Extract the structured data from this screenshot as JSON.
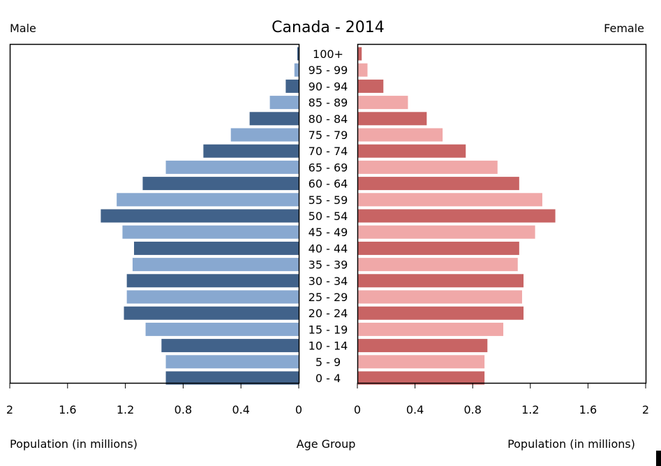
{
  "chart_data": {
    "type": "bar",
    "subtype": "population-pyramid",
    "title": "Canada - 2014",
    "left_label": "Male",
    "right_label": "Female",
    "xlabel_left": "Population (in millions)",
    "xlabel_center": "Age Group",
    "xlabel_right": "Population (in millions)",
    "xlim": [
      0,
      2
    ],
    "ticks": [
      "0",
      "0.4",
      "0.8",
      "1.2",
      "1.6",
      "2"
    ],
    "tick_values": [
      0,
      0.4,
      0.8,
      1.2,
      1.6,
      2
    ],
    "categories": [
      "100+",
      "95 - 99",
      "90 - 94",
      "85 - 89",
      "80 - 84",
      "75 - 79",
      "70 - 74",
      "65 - 69",
      "60 - 64",
      "55 - 59",
      "50 - 54",
      "45 - 49",
      "40 - 44",
      "35 - 39",
      "30 - 34",
      "25 - 29",
      "20 - 24",
      "15 - 19",
      "10 - 14",
      "5 - 9",
      "0 - 4"
    ],
    "series": [
      {
        "name": "Male",
        "values": [
          0.01,
          0.03,
          0.09,
          0.2,
          0.34,
          0.47,
          0.66,
          0.92,
          1.08,
          1.26,
          1.37,
          1.22,
          1.14,
          1.15,
          1.19,
          1.19,
          1.21,
          1.06,
          0.95,
          0.92,
          0.92
        ],
        "colors": [
          "#41628a",
          "#88a8d0"
        ]
      },
      {
        "name": "Female",
        "values": [
          0.03,
          0.07,
          0.18,
          0.35,
          0.48,
          0.59,
          0.75,
          0.97,
          1.12,
          1.28,
          1.37,
          1.23,
          1.12,
          1.11,
          1.15,
          1.14,
          1.15,
          1.01,
          0.9,
          0.88,
          0.88
        ],
        "colors": [
          "#c86464",
          "#f0a8a8"
        ]
      }
    ]
  }
}
